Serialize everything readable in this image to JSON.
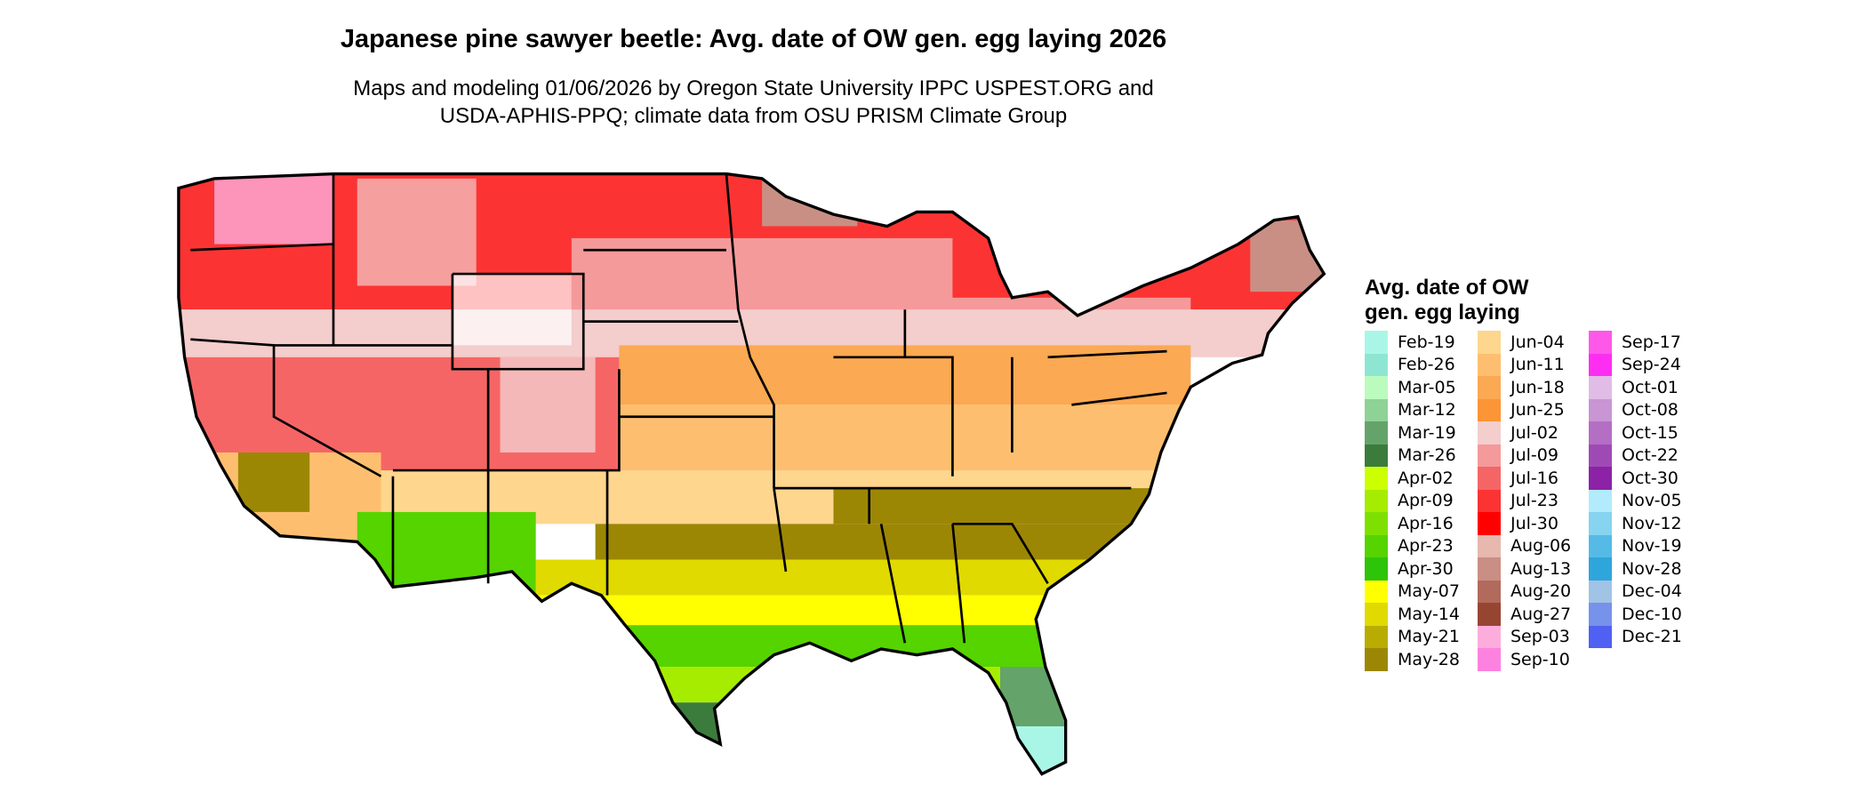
{
  "title": "Japanese pine sawyer beetle: Avg. date of OW gen. egg laying 2026",
  "subtitle_lines": [
    "Maps and modeling 01/06/2026 by Oregon State University IPPC USPEST.ORG and",
    "USDA-APHIS-PPQ; climate data from OSU PRISM Climate Group"
  ],
  "legend": {
    "title_lines": [
      "Avg. date of OW",
      "gen. egg laying"
    ],
    "columns": [
      [
        {
          "label": "Feb-19",
          "color": "#aaf6e6"
        },
        {
          "label": "Feb-26",
          "color": "#8ee6d2"
        },
        {
          "label": "Mar-05",
          "color": "#bbfbbd"
        },
        {
          "label": "Mar-12",
          "color": "#8fd295"
        },
        {
          "label": "Mar-19",
          "color": "#64a46a"
        },
        {
          "label": "Mar-26",
          "color": "#3b7c3c"
        },
        {
          "label": "Apr-02",
          "color": "#ccff00"
        },
        {
          "label": "Apr-09",
          "color": "#a6ec00"
        },
        {
          "label": "Apr-16",
          "color": "#7ee000"
        },
        {
          "label": "Apr-23",
          "color": "#55d400"
        },
        {
          "label": "Apr-30",
          "color": "#2ec40a"
        },
        {
          "label": "May-07",
          "color": "#ffff00"
        },
        {
          "label": "May-14",
          "color": "#e0da00"
        },
        {
          "label": "May-21",
          "color": "#b8ac00"
        },
        {
          "label": "May-28",
          "color": "#9c8705"
        }
      ],
      [
        {
          "label": "Jun-04",
          "color": "#fed68e"
        },
        {
          "label": "Jun-11",
          "color": "#fdbf6f"
        },
        {
          "label": "Jun-18",
          "color": "#fba952"
        },
        {
          "label": "Jun-25",
          "color": "#fc9535"
        },
        {
          "label": "Jul-02",
          "color": "#f4cdcd"
        },
        {
          "label": "Jul-09",
          "color": "#f49a9a"
        },
        {
          "label": "Jul-16",
          "color": "#f66565"
        },
        {
          "label": "Jul-23",
          "color": "#fc3333"
        },
        {
          "label": "Jul-30",
          "color": "#ff0000"
        },
        {
          "label": "Aug-06",
          "color": "#e6b8ae"
        },
        {
          "label": "Aug-13",
          "color": "#c98f84"
        },
        {
          "label": "Aug-20",
          "color": "#b16a5b"
        },
        {
          "label": "Aug-27",
          "color": "#974533"
        },
        {
          "label": "Sep-03",
          "color": "#fdaddb"
        },
        {
          "label": "Sep-10",
          "color": "#fd82e0"
        }
      ],
      [
        {
          "label": "Sep-17",
          "color": "#fd58e8"
        },
        {
          "label": "Sep-24",
          "color": "#fd2ef2"
        },
        {
          "label": "Oct-01",
          "color": "#e0bce6"
        },
        {
          "label": "Oct-08",
          "color": "#c995d4"
        },
        {
          "label": "Oct-15",
          "color": "#b46ec3"
        },
        {
          "label": "Oct-22",
          "color": "#9f4ab4"
        },
        {
          "label": "Oct-30",
          "color": "#8c22a6"
        },
        {
          "label": "Nov-05",
          "color": "#b2ebfb"
        },
        {
          "label": "Nov-12",
          "color": "#86d4f0"
        },
        {
          "label": "Nov-19",
          "color": "#55bbe6"
        },
        {
          "label": "Nov-28",
          "color": "#2ea6db"
        },
        {
          "label": "Dec-04",
          "color": "#a0c3e6"
        },
        {
          "label": "Dec-10",
          "color": "#7692ea"
        },
        {
          "label": "Dec-21",
          "color": "#5060f2"
        }
      ]
    ]
  }
}
